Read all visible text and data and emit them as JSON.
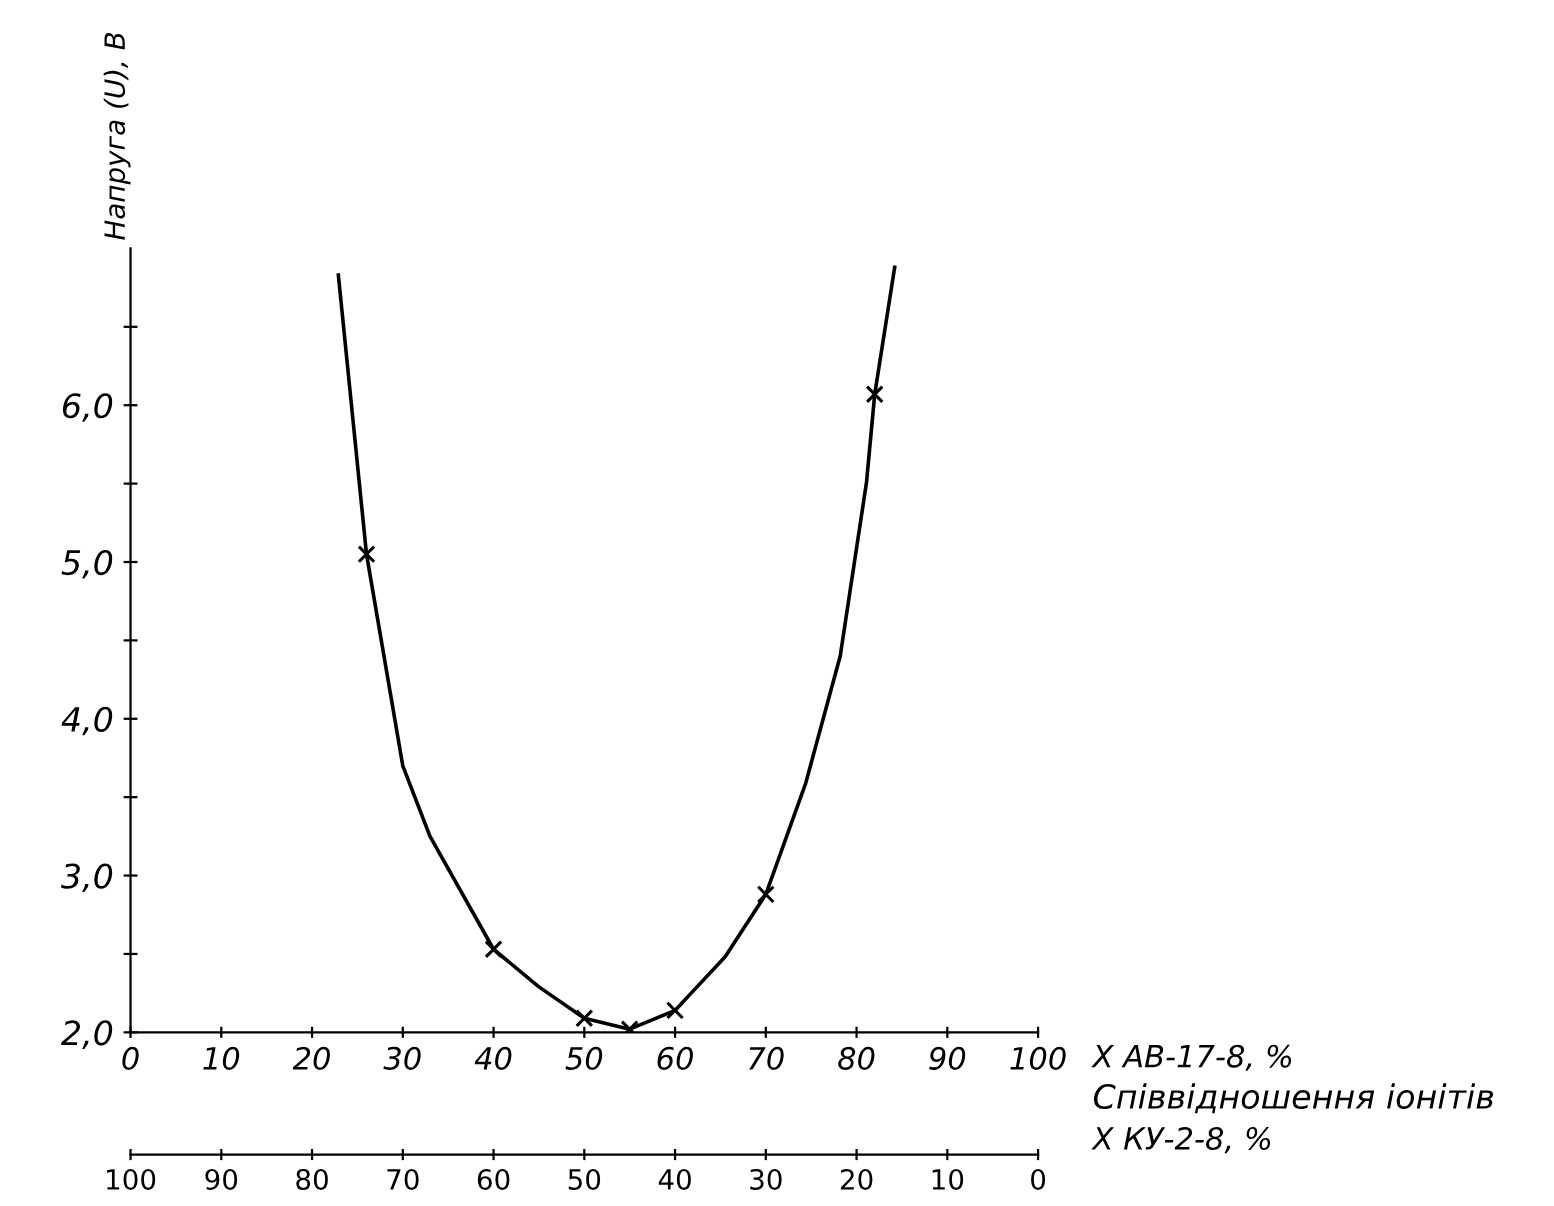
{
  "chart_data": {
    "type": "line",
    "ylabel": "Напруга (U), В",
    "xlabel": "X АВ-17-8, %",
    "x2label": "X КУ-2-8, %",
    "annotations": [
      "Співвідношення іонітів"
    ],
    "xlim": [
      0,
      100
    ],
    "xticks": [
      0,
      10,
      20,
      30,
      40,
      50,
      60,
      70,
      80,
      90,
      100
    ],
    "x2lim": [
      100,
      0
    ],
    "x2ticks": [
      100,
      90,
      80,
      70,
      60,
      50,
      40,
      30,
      20,
      10,
      0
    ],
    "ylim": [
      2.0,
      7.0
    ],
    "yticks": [
      {
        "value": 2.0,
        "label": "2,0"
      },
      {
        "value": 2.5,
        "label": null
      },
      {
        "value": 3.0,
        "label": "3,0"
      },
      {
        "value": 3.5,
        "label": null
      },
      {
        "value": 4.0,
        "label": "4,0"
      },
      {
        "value": 4.5,
        "label": null
      },
      {
        "value": 5.0,
        "label": "5,0"
      },
      {
        "value": 5.5,
        "label": null
      },
      {
        "value": 6.0,
        "label": "6,0"
      },
      {
        "value": 6.5,
        "label": null
      }
    ],
    "grid": false,
    "series": [
      {
        "color": "#000000",
        "marker": "none",
        "line_style": "solid",
        "x": [
          22.9,
          26,
          30,
          33,
          40,
          45,
          50,
          55,
          60,
          65.5,
          70,
          74.4,
          78.2,
          81.1,
          82,
          84.2
        ],
        "values": [
          6.83,
          5.05,
          3.7,
          3.25,
          2.53,
          2.29,
          2.09,
          2.02,
          2.14,
          2.48,
          2.88,
          3.59,
          4.4,
          5.51,
          6.07,
          6.88
        ]
      },
      {
        "type": "scatter",
        "color": "#000000",
        "marker": "cross",
        "x": [
          26,
          40,
          50,
          55,
          60,
          70,
          82
        ],
        "values": [
          5.05,
          2.53,
          2.09,
          2.02,
          2.14,
          2.88,
          6.07
        ]
      }
    ]
  }
}
